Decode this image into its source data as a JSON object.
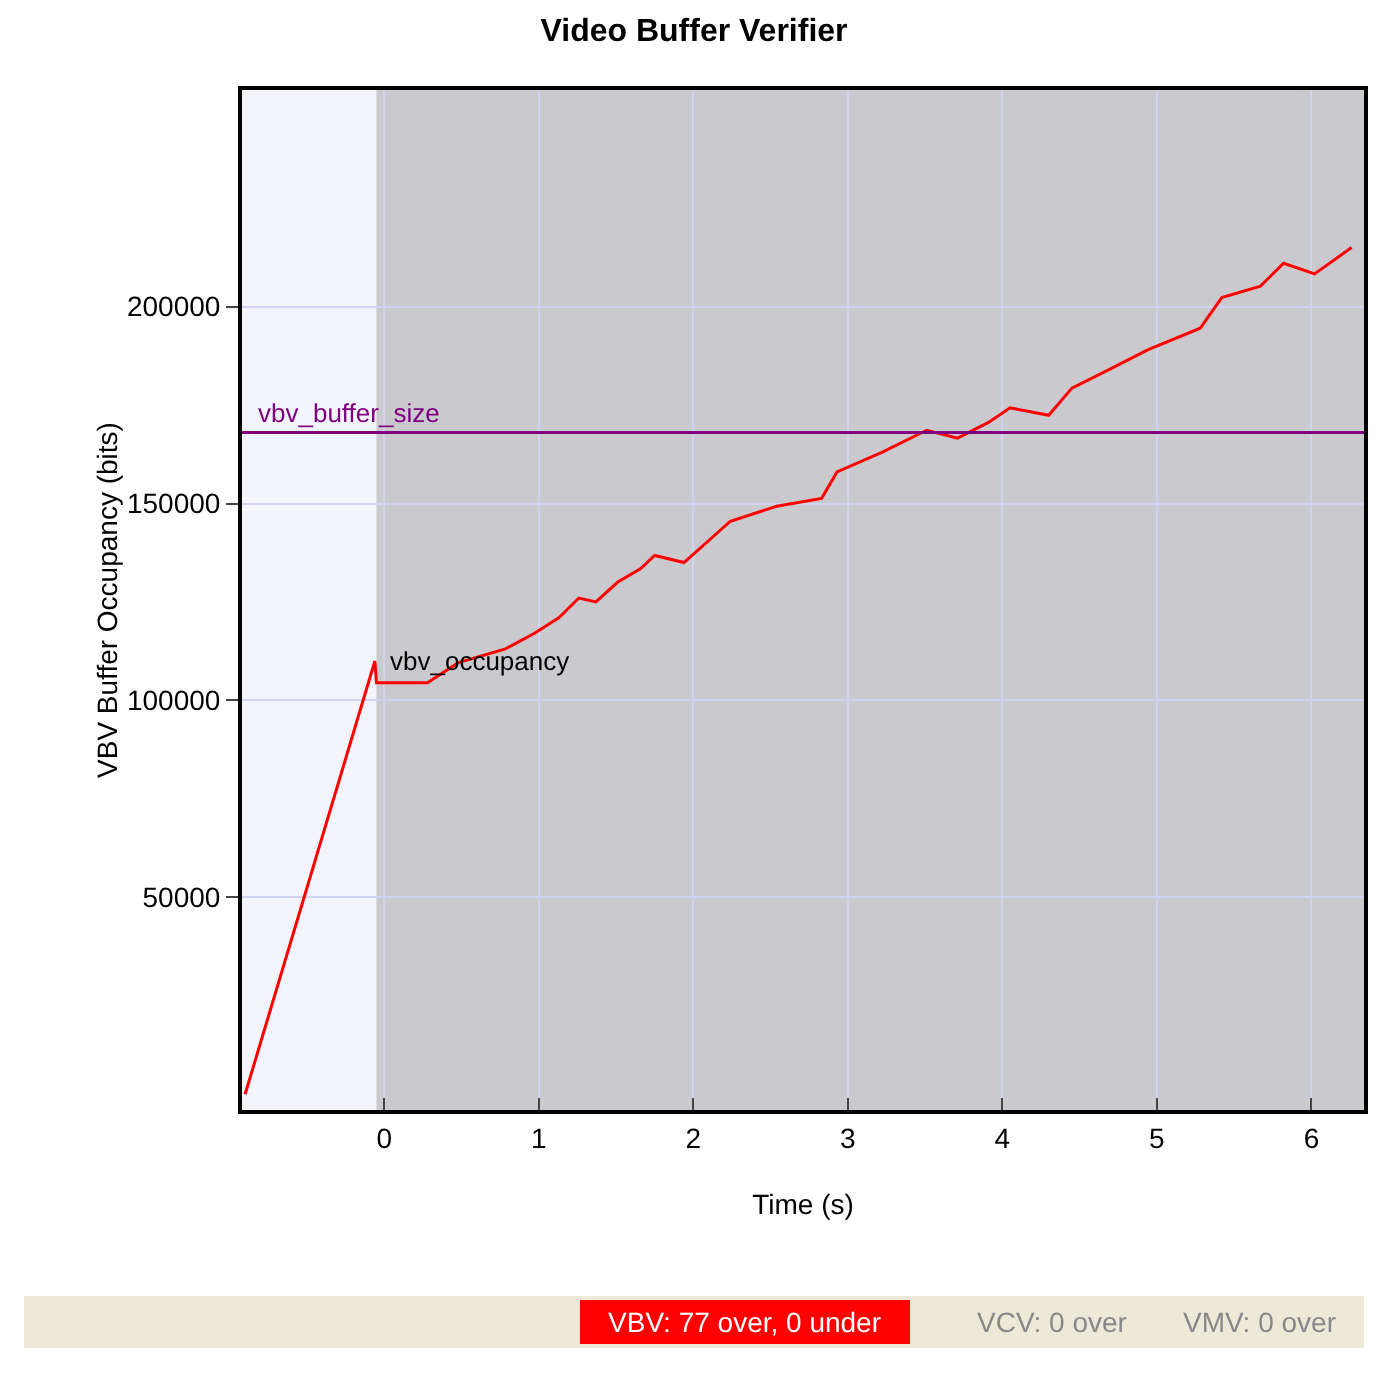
{
  "chart_data": {
    "type": "line",
    "title": "Video Buffer Verifier",
    "xlabel": "Time (s)",
    "ylabel": "VBV Buffer Occupancy (bits)",
    "xlim": [
      -0.92,
      6.34
    ],
    "xticks": [
      0,
      1,
      2,
      3,
      4,
      5,
      6
    ],
    "ylim": [
      -4000,
      255000
    ],
    "yticks": [
      50000,
      100000,
      150000,
      200000
    ],
    "grid": true,
    "legend": false,
    "marker": "none",
    "line_style": "solid",
    "series": [
      {
        "name": "vbv_occupancy",
        "color": "#ff0000",
        "x": [
          -0.9,
          -0.06,
          -0.05,
          0.28,
          0.48,
          0.78,
          0.97,
          1.13,
          1.26,
          1.37,
          1.51,
          1.66,
          1.75,
          1.94,
          2.24,
          2.54,
          2.83,
          2.93,
          3.22,
          3.51,
          3.71,
          3.91,
          4.05,
          4.3,
          4.45,
          4.69,
          4.94,
          5.28,
          5.42,
          5.67,
          5.82,
          6.02,
          6.26
        ],
        "values": [
          0,
          110000,
          104500,
          104500,
          109600,
          113000,
          117000,
          121000,
          126000,
          125000,
          130000,
          133500,
          136800,
          135000,
          145500,
          149300,
          151300,
          158000,
          163000,
          168600,
          166600,
          170600,
          174300,
          172400,
          179300,
          184000,
          189000,
          194500,
          202300,
          205200,
          211000,
          208300,
          215000
        ]
      }
    ],
    "ref_lines": [
      {
        "axis": "y",
        "value": 168000,
        "label": "vbv_buffer_size",
        "color": "#800080"
      }
    ],
    "bands": [
      {
        "axis": "x",
        "from": -0.05,
        "to": 6.34,
        "color": "#a8a8a8"
      }
    ],
    "annotations": [
      "VBV: 77 over, 0 under",
      "VCV: 0 over",
      "VMV: 0 over"
    ]
  }
}
